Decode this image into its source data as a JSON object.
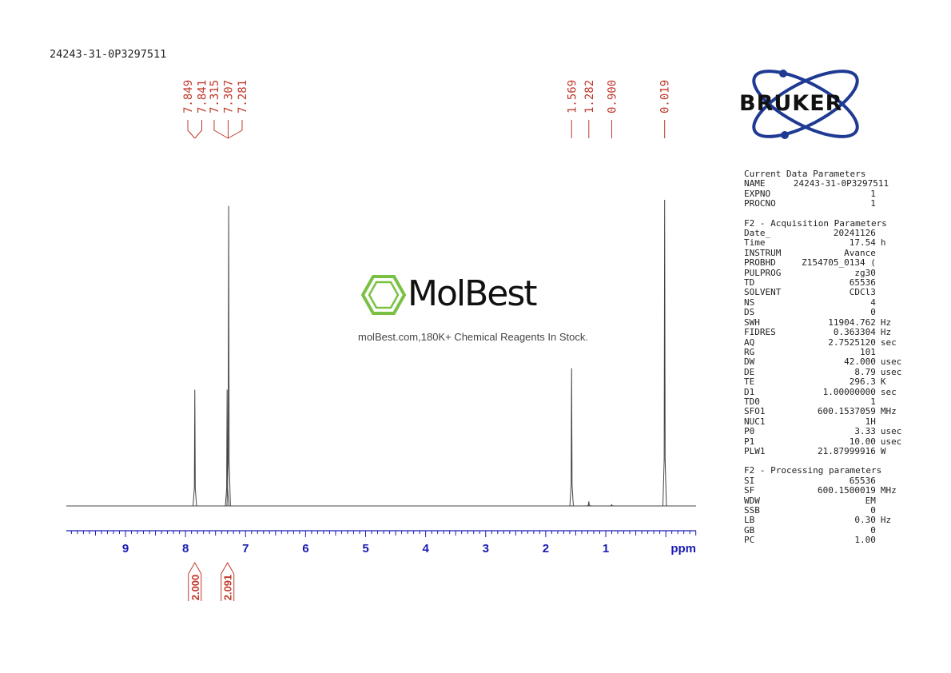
{
  "sample_id": "24243-31-0P3297511",
  "brand": {
    "bruker": "BRUKER",
    "watermark_name": "MolBest",
    "watermark_tagline": "molBest.com,180K+ Chemical Reagents In Stock.",
    "watermark_color": "#7ac143"
  },
  "colors": {
    "axis": "#1a1ab4",
    "annotations": "#c0392b",
    "trace": "#444444"
  },
  "chart_data": {
    "type": "line",
    "title": "",
    "xlabel": "ppm",
    "ylabel": "",
    "xlim": [
      10.0,
      -0.5
    ],
    "x_reversed": true,
    "x_ticks": [
      "9",
      "8",
      "7",
      "6",
      "5",
      "4",
      "3",
      "2",
      "1"
    ],
    "x_tick_values": [
      9,
      8,
      7,
      6,
      5,
      4,
      3,
      2,
      1
    ],
    "peaks": [
      {
        "ppm": 7.845,
        "intensity": 0.38
      },
      {
        "ppm": 7.307,
        "intensity": 0.38
      },
      {
        "ppm": 7.281,
        "intensity": 0.98
      },
      {
        "ppm": 1.569,
        "intensity": 0.45
      },
      {
        "ppm": 1.282,
        "intensity": 0.015
      },
      {
        "ppm": 0.9,
        "intensity": 0.004
      },
      {
        "ppm": 0.019,
        "intensity": 1.0
      }
    ],
    "peak_label_groups": [
      {
        "labels": [
          "7.849",
          "7.841"
        ],
        "target_ppm": 7.845
      },
      {
        "labels": [
          "7.315",
          "7.307",
          "7.281"
        ],
        "target_ppm": 7.29
      },
      {
        "labels": [
          "1.569"
        ],
        "target_ppm": 1.569
      },
      {
        "labels": [
          "1.282"
        ],
        "target_ppm": 1.282
      },
      {
        "labels": [
          "0.900"
        ],
        "target_ppm": 0.9
      },
      {
        "labels": [
          "0.019"
        ],
        "target_ppm": 0.019
      }
    ],
    "integrals": [
      {
        "value": "2.000",
        "ppm": 7.845
      },
      {
        "value": "2.091",
        "ppm": 7.3
      }
    ]
  },
  "params": {
    "current": {
      "title": "Current Data Parameters",
      "rows": [
        {
          "name": "NAME",
          "value": "24243-31-0P3297511",
          "unit": ""
        },
        {
          "name": "EXPNO",
          "value": "1",
          "unit": ""
        },
        {
          "name": "PROCNO",
          "value": "1",
          "unit": ""
        }
      ]
    },
    "acquisition": {
      "title": "F2 - Acquisition Parameters",
      "rows": [
        {
          "name": "Date_",
          "value": "20241126",
          "unit": ""
        },
        {
          "name": "Time",
          "value": "17.54",
          "unit": "h"
        },
        {
          "name": "INSTRUM",
          "value": "Avance",
          "unit": ""
        },
        {
          "name": "PROBHD",
          "value": "Z154705_0134 (",
          "unit": ""
        },
        {
          "name": "PULPROG",
          "value": "zg30",
          "unit": ""
        },
        {
          "name": "TD",
          "value": "65536",
          "unit": ""
        },
        {
          "name": "SOLVENT",
          "value": "CDCl3",
          "unit": ""
        },
        {
          "name": "NS",
          "value": "4",
          "unit": ""
        },
        {
          "name": "DS",
          "value": "0",
          "unit": ""
        },
        {
          "name": "SWH",
          "value": "11904.762",
          "unit": "Hz"
        },
        {
          "name": "FIDRES",
          "value": "0.363304",
          "unit": "Hz"
        },
        {
          "name": "AQ",
          "value": "2.7525120",
          "unit": "sec"
        },
        {
          "name": "RG",
          "value": "101",
          "unit": ""
        },
        {
          "name": "DW",
          "value": "42.000",
          "unit": "usec"
        },
        {
          "name": "DE",
          "value": "8.79",
          "unit": "usec"
        },
        {
          "name": "TE",
          "value": "296.3",
          "unit": "K"
        },
        {
          "name": "D1",
          "value": "1.00000000",
          "unit": "sec"
        },
        {
          "name": "TD0",
          "value": "1",
          "unit": ""
        },
        {
          "name": "SFO1",
          "value": "600.1537059",
          "unit": "MHz"
        },
        {
          "name": "NUC1",
          "value": "1H",
          "unit": ""
        },
        {
          "name": "P0",
          "value": "3.33",
          "unit": "usec"
        },
        {
          "name": "P1",
          "value": "10.00",
          "unit": "usec"
        },
        {
          "name": "PLW1",
          "value": "21.87999916",
          "unit": "W"
        }
      ]
    },
    "processing": {
      "title": "F2 - Processing parameters",
      "rows": [
        {
          "name": "SI",
          "value": "65536",
          "unit": ""
        },
        {
          "name": "SF",
          "value": "600.1500019",
          "unit": "MHz"
        },
        {
          "name": "WDW",
          "value": "EM",
          "unit": ""
        },
        {
          "name": "SSB",
          "value": "0",
          "unit": ""
        },
        {
          "name": "LB",
          "value": "0.30",
          "unit": "Hz"
        },
        {
          "name": "GB",
          "value": "0",
          "unit": ""
        },
        {
          "name": "PC",
          "value": "1.00",
          "unit": ""
        }
      ]
    }
  }
}
